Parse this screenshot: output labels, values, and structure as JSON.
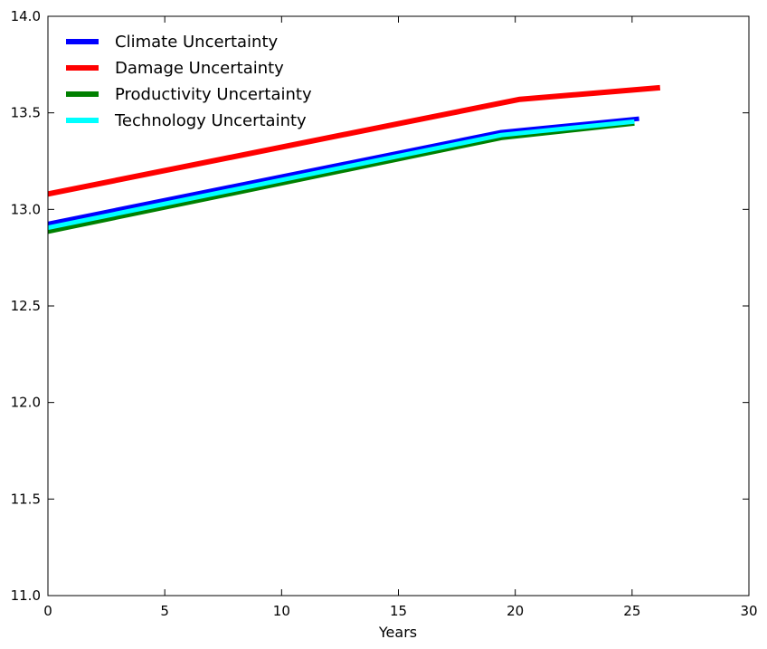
{
  "chart_data": {
    "type": "line",
    "title": "",
    "xlabel": "Years",
    "ylabel": "",
    "xlim": [
      0,
      30
    ],
    "ylim": [
      11.0,
      14.0
    ],
    "xticks": [
      0,
      5,
      10,
      15,
      20,
      25,
      30
    ],
    "yticks": [
      11.0,
      11.5,
      12.0,
      12.5,
      13.0,
      13.5,
      14.0
    ],
    "xtick_labels": [
      "0",
      "5",
      "10",
      "15",
      "20",
      "25",
      "30"
    ],
    "ytick_labels": [
      "11.0",
      "11.5",
      "12.0",
      "12.5",
      "13.0",
      "13.5",
      "14.0"
    ],
    "grid": false,
    "legend_position": "top-left",
    "series": [
      {
        "name": "Climate Uncertainty",
        "color": "#0000ff",
        "width": 5,
        "x": [
          0,
          19.4,
          25.3
        ],
        "y": [
          12.925,
          13.4,
          13.47
        ]
      },
      {
        "name": "Damage Uncertainty",
        "color": "#ff0000",
        "width": 6,
        "x": [
          0,
          20.2,
          26.2
        ],
        "y": [
          13.08,
          13.57,
          13.63
        ]
      },
      {
        "name": "Productivity Uncertainty",
        "color": "#008000",
        "width": 5,
        "x": [
          0,
          19.4,
          25.1
        ],
        "y": [
          12.885,
          13.37,
          13.445
        ]
      },
      {
        "name": "Technology Uncertainty",
        "color": "#00ffff",
        "width": 5,
        "x": [
          0,
          19.4,
          25.1
        ],
        "y": [
          12.905,
          13.385,
          13.455
        ]
      }
    ]
  }
}
